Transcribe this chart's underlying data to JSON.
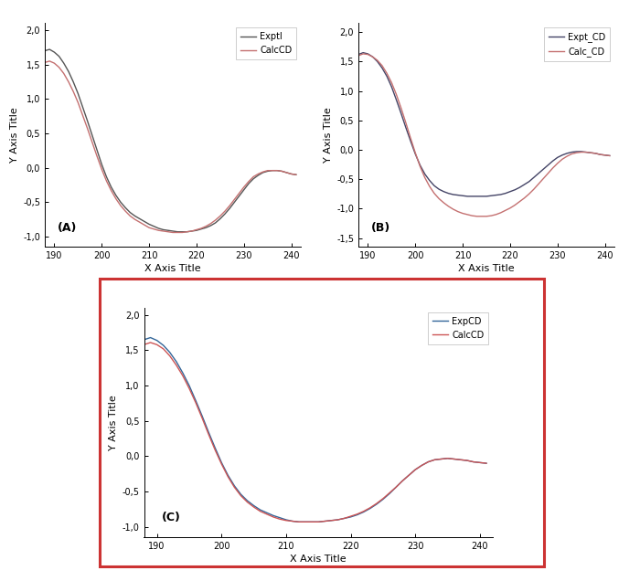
{
  "xlabel": "X Axis Title",
  "ylabel": "Y Axis Title",
  "bg_color": "#ffffff",
  "line_color_exp_A": "#555555",
  "line_color_calc_A": "#c47070",
  "line_color_exp_B": "#444466",
  "line_color_calc_B": "#c47070",
  "line_color_exp_C": "#336699",
  "line_color_calc_C": "#cc5555",
  "panel_A": {
    "label": "(A)",
    "legend_exp": "Exptl",
    "legend_calc": "CalcCD",
    "ylim": [
      -1.15,
      2.1
    ],
    "yticks": [
      -1.0,
      -0.5,
      0.0,
      0.5,
      1.0,
      1.5,
      2.0
    ],
    "xticks": [
      190,
      200,
      210,
      220,
      230,
      240
    ],
    "xlim": [
      188,
      242
    ],
    "exp_x": [
      188,
      189,
      190,
      191,
      192,
      193,
      194,
      195,
      196,
      197,
      198,
      199,
      200,
      201,
      202,
      203,
      204,
      205,
      206,
      207,
      208,
      209,
      210,
      211,
      212,
      213,
      214,
      215,
      216,
      217,
      218,
      219,
      220,
      221,
      222,
      223,
      224,
      225,
      226,
      227,
      228,
      229,
      230,
      231,
      232,
      233,
      234,
      235,
      236,
      237,
      238,
      239,
      240,
      241
    ],
    "exp_y": [
      1.7,
      1.72,
      1.68,
      1.62,
      1.52,
      1.4,
      1.25,
      1.08,
      0.88,
      0.68,
      0.47,
      0.26,
      0.05,
      -0.13,
      -0.28,
      -0.4,
      -0.5,
      -0.58,
      -0.65,
      -0.7,
      -0.74,
      -0.78,
      -0.82,
      -0.85,
      -0.88,
      -0.9,
      -0.91,
      -0.92,
      -0.93,
      -0.93,
      -0.93,
      -0.92,
      -0.91,
      -0.89,
      -0.87,
      -0.84,
      -0.8,
      -0.74,
      -0.67,
      -0.59,
      -0.5,
      -0.41,
      -0.32,
      -0.23,
      -0.16,
      -0.11,
      -0.07,
      -0.05,
      -0.04,
      -0.04,
      -0.05,
      -0.07,
      -0.09,
      -0.1
    ],
    "calc_x": [
      188,
      189,
      190,
      191,
      192,
      193,
      194,
      195,
      196,
      197,
      198,
      199,
      200,
      201,
      202,
      203,
      204,
      205,
      206,
      207,
      208,
      209,
      210,
      211,
      212,
      213,
      214,
      215,
      216,
      217,
      218,
      219,
      220,
      221,
      222,
      223,
      224,
      225,
      226,
      227,
      228,
      229,
      230,
      231,
      232,
      233,
      234,
      235,
      236,
      237,
      238,
      239,
      240,
      241
    ],
    "calc_y": [
      1.53,
      1.55,
      1.52,
      1.46,
      1.37,
      1.25,
      1.11,
      0.95,
      0.76,
      0.57,
      0.37,
      0.17,
      -0.02,
      -0.19,
      -0.33,
      -0.45,
      -0.55,
      -0.63,
      -0.7,
      -0.75,
      -0.79,
      -0.83,
      -0.87,
      -0.89,
      -0.91,
      -0.92,
      -0.93,
      -0.94,
      -0.94,
      -0.94,
      -0.93,
      -0.92,
      -0.9,
      -0.88,
      -0.85,
      -0.81,
      -0.76,
      -0.7,
      -0.63,
      -0.55,
      -0.46,
      -0.37,
      -0.28,
      -0.2,
      -0.13,
      -0.09,
      -0.06,
      -0.04,
      -0.04,
      -0.04,
      -0.05,
      -0.07,
      -0.09,
      -0.1
    ]
  },
  "panel_B": {
    "label": "(B)",
    "legend_exp": "Expt_CD",
    "legend_calc": "Calc_CD",
    "ylim": [
      -1.65,
      2.15
    ],
    "yticks": [
      -1.5,
      -1.0,
      -0.5,
      0.0,
      0.5,
      1.0,
      1.5,
      2.0
    ],
    "xticks": [
      190,
      200,
      210,
      220,
      230,
      240
    ],
    "xlim": [
      188,
      242
    ],
    "exp_x": [
      188,
      189,
      190,
      191,
      192,
      193,
      194,
      195,
      196,
      197,
      198,
      199,
      200,
      201,
      202,
      203,
      204,
      205,
      206,
      207,
      208,
      209,
      210,
      211,
      212,
      213,
      214,
      215,
      216,
      217,
      218,
      219,
      220,
      221,
      222,
      223,
      224,
      225,
      226,
      227,
      228,
      229,
      230,
      231,
      232,
      233,
      234,
      235,
      236,
      237,
      238,
      239,
      240,
      241
    ],
    "exp_y": [
      1.62,
      1.65,
      1.63,
      1.58,
      1.5,
      1.39,
      1.25,
      1.07,
      0.85,
      0.62,
      0.38,
      0.15,
      -0.07,
      -0.26,
      -0.41,
      -0.52,
      -0.61,
      -0.67,
      -0.71,
      -0.74,
      -0.76,
      -0.77,
      -0.78,
      -0.79,
      -0.79,
      -0.79,
      -0.79,
      -0.79,
      -0.78,
      -0.77,
      -0.76,
      -0.74,
      -0.71,
      -0.68,
      -0.64,
      -0.59,
      -0.54,
      -0.47,
      -0.4,
      -0.33,
      -0.26,
      -0.19,
      -0.13,
      -0.09,
      -0.06,
      -0.04,
      -0.03,
      -0.03,
      -0.04,
      -0.05,
      -0.06,
      -0.08,
      -0.09,
      -0.1
    ],
    "calc_x": [
      188,
      189,
      190,
      191,
      192,
      193,
      194,
      195,
      196,
      197,
      198,
      199,
      200,
      201,
      202,
      203,
      204,
      205,
      206,
      207,
      208,
      209,
      210,
      211,
      212,
      213,
      214,
      215,
      216,
      217,
      218,
      219,
      220,
      221,
      222,
      223,
      224,
      225,
      226,
      227,
      228,
      229,
      230,
      231,
      232,
      233,
      234,
      235,
      236,
      237,
      238,
      239,
      240,
      241
    ],
    "calc_y": [
      1.6,
      1.63,
      1.62,
      1.58,
      1.52,
      1.43,
      1.3,
      1.14,
      0.94,
      0.71,
      0.46,
      0.2,
      -0.05,
      -0.28,
      -0.47,
      -0.62,
      -0.74,
      -0.83,
      -0.9,
      -0.96,
      -1.01,
      -1.05,
      -1.08,
      -1.1,
      -1.12,
      -1.13,
      -1.13,
      -1.13,
      -1.12,
      -1.1,
      -1.07,
      -1.03,
      -0.99,
      -0.94,
      -0.88,
      -0.82,
      -0.75,
      -0.67,
      -0.58,
      -0.49,
      -0.4,
      -0.31,
      -0.23,
      -0.16,
      -0.11,
      -0.07,
      -0.05,
      -0.04,
      -0.04,
      -0.05,
      -0.06,
      -0.08,
      -0.09,
      -0.1
    ]
  },
  "panel_C": {
    "label": "(C)",
    "legend_exp": "ExpCD",
    "legend_calc": "CalcCD",
    "ylim": [
      -1.15,
      2.1
    ],
    "yticks": [
      -1.0,
      -0.5,
      0.0,
      0.5,
      1.0,
      1.5,
      2.0
    ],
    "xticks": [
      190,
      200,
      210,
      220,
      230,
      240
    ],
    "xlim": [
      188,
      242
    ],
    "exp_x": [
      188,
      189,
      190,
      191,
      192,
      193,
      194,
      195,
      196,
      197,
      198,
      199,
      200,
      201,
      202,
      203,
      204,
      205,
      206,
      207,
      208,
      209,
      210,
      211,
      212,
      213,
      214,
      215,
      216,
      217,
      218,
      219,
      220,
      221,
      222,
      223,
      224,
      225,
      226,
      227,
      228,
      229,
      230,
      231,
      232,
      233,
      234,
      235,
      236,
      237,
      238,
      239,
      240,
      241
    ],
    "exp_y": [
      1.65,
      1.68,
      1.64,
      1.57,
      1.47,
      1.34,
      1.18,
      1.0,
      0.79,
      0.57,
      0.34,
      0.12,
      -0.09,
      -0.27,
      -0.42,
      -0.54,
      -0.63,
      -0.7,
      -0.76,
      -0.8,
      -0.84,
      -0.87,
      -0.9,
      -0.92,
      -0.93,
      -0.93,
      -0.93,
      -0.93,
      -0.92,
      -0.91,
      -0.9,
      -0.88,
      -0.86,
      -0.83,
      -0.79,
      -0.74,
      -0.68,
      -0.61,
      -0.53,
      -0.44,
      -0.35,
      -0.27,
      -0.19,
      -0.13,
      -0.08,
      -0.05,
      -0.04,
      -0.03,
      -0.04,
      -0.05,
      -0.06,
      -0.08,
      -0.09,
      -0.1
    ],
    "calc_x": [
      188,
      189,
      190,
      191,
      192,
      193,
      194,
      195,
      196,
      197,
      198,
      199,
      200,
      201,
      202,
      203,
      204,
      205,
      206,
      207,
      208,
      209,
      210,
      211,
      212,
      213,
      214,
      215,
      216,
      217,
      218,
      219,
      220,
      221,
      222,
      223,
      224,
      225,
      226,
      227,
      228,
      229,
      230,
      231,
      232,
      233,
      234,
      235,
      236,
      237,
      238,
      239,
      240,
      241
    ],
    "calc_y": [
      1.58,
      1.61,
      1.58,
      1.52,
      1.42,
      1.29,
      1.14,
      0.96,
      0.76,
      0.54,
      0.31,
      0.09,
      -0.11,
      -0.29,
      -0.44,
      -0.56,
      -0.65,
      -0.72,
      -0.78,
      -0.82,
      -0.86,
      -0.89,
      -0.91,
      -0.92,
      -0.93,
      -0.93,
      -0.93,
      -0.93,
      -0.92,
      -0.91,
      -0.9,
      -0.88,
      -0.85,
      -0.82,
      -0.78,
      -0.73,
      -0.67,
      -0.6,
      -0.52,
      -0.44,
      -0.35,
      -0.27,
      -0.19,
      -0.13,
      -0.08,
      -0.05,
      -0.04,
      -0.03,
      -0.04,
      -0.05,
      -0.06,
      -0.08,
      -0.09,
      -0.1
    ]
  },
  "border_color": "#cc3333",
  "font_size_label": 8,
  "font_size_axis": 8,
  "font_size_tick": 7,
  "font_size_legend": 7,
  "line_width": 1.0
}
